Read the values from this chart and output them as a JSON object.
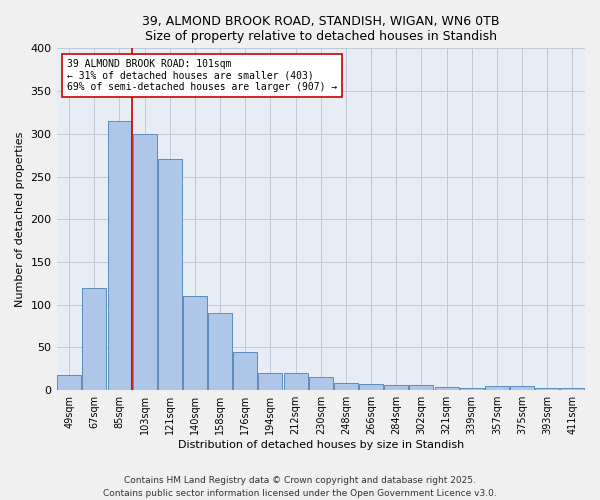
{
  "title_line1": "39, ALMOND BROOK ROAD, STANDISH, WIGAN, WN6 0TB",
  "title_line2": "Size of property relative to detached houses in Standish",
  "xlabel": "Distribution of detached houses by size in Standish",
  "ylabel": "Number of detached properties",
  "bar_labels": [
    "49sqm",
    "67sqm",
    "85sqm",
    "103sqm",
    "121sqm",
    "140sqm",
    "158sqm",
    "176sqm",
    "194sqm",
    "212sqm",
    "230sqm",
    "248sqm",
    "266sqm",
    "284sqm",
    "302sqm",
    "321sqm",
    "339sqm",
    "357sqm",
    "375sqm",
    "393sqm",
    "411sqm"
  ],
  "bar_heights": [
    18,
    120,
    315,
    300,
    270,
    110,
    90,
    45,
    20,
    20,
    15,
    8,
    7,
    6,
    6,
    4,
    2,
    5,
    5,
    2,
    2
  ],
  "bar_color": "#aec6e8",
  "bar_edge_color": "#5b8db8",
  "bar_linewidth": 0.7,
  "red_line_x": 2.5,
  "annotation_text": "39 ALMOND BROOK ROAD: 101sqm\n← 31% of detached houses are smaller (403)\n69% of semi-detached houses are larger (907) →",
  "annotation_box_color": "#ffffff",
  "annotation_box_edge_color": "#cc0000",
  "annotation_fontsize": 7,
  "red_line_color": "#cc0000",
  "red_line_linewidth": 1.2,
  "ylim": [
    0,
    400
  ],
  "yticks": [
    0,
    50,
    100,
    150,
    200,
    250,
    300,
    350,
    400
  ],
  "grid_color": "#c0c8d8",
  "bg_color": "#e8edf5",
  "fig_bg_color": "#f0f0f0",
  "footer_line1": "Contains HM Land Registry data © Crown copyright and database right 2025.",
  "footer_line2": "Contains public sector information licensed under the Open Government Licence v3.0.",
  "footer_fontsize": 6.5,
  "title_fontsize": 9,
  "ylabel_fontsize": 8,
  "xlabel_fontsize": 8
}
